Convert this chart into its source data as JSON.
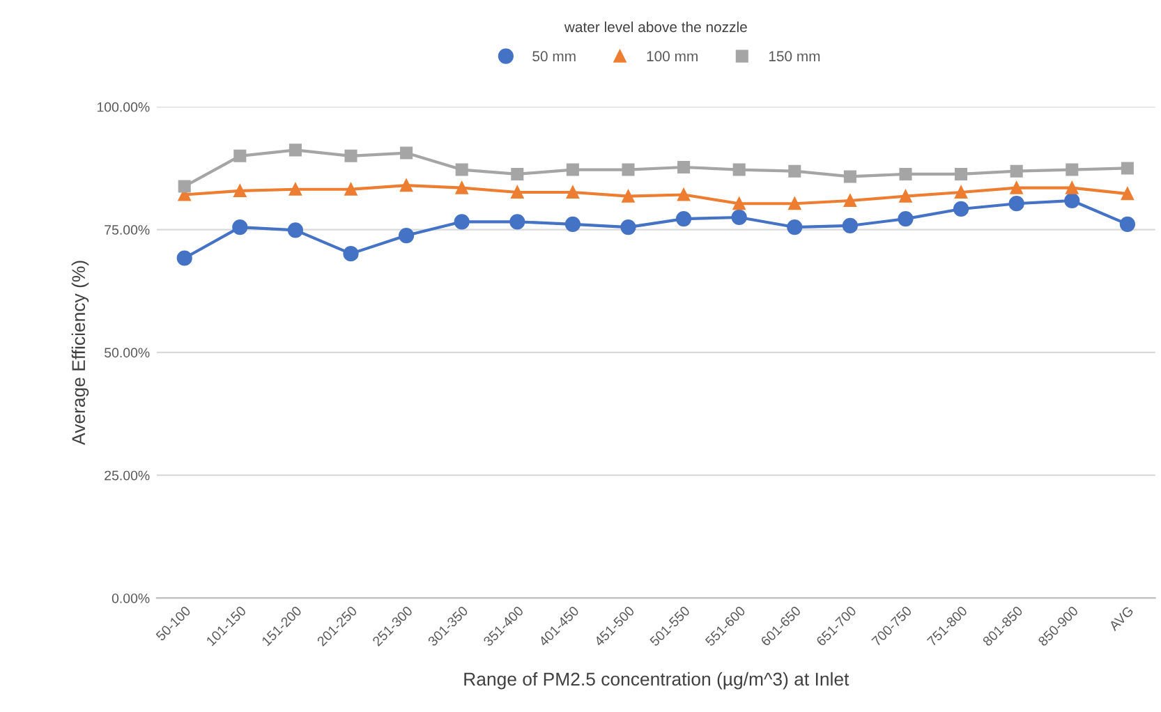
{
  "chart_data": {
    "type": "line",
    "title": "water level above the nozzle",
    "xlabel": "Range of PM2.5 concentration (µg/m^3) at Inlet",
    "ylabel": "Average Efficiency (%)",
    "categories": [
      "50-100",
      "101-150",
      "151-200",
      "201-250",
      "251-300",
      "301-350",
      "351-400",
      "401-450",
      "451-500",
      "501-550",
      "551-600",
      "601-650",
      "651-700",
      "700-750",
      "751-800",
      "801-850",
      "850-900",
      "AVG"
    ],
    "series": [
      {
        "name": "50 mm",
        "color": "#4472c4",
        "marker": "circle",
        "values": [
          69.2,
          75.5,
          74.9,
          70.1,
          73.8,
          76.6,
          76.6,
          76.1,
          75.5,
          77.2,
          77.5,
          75.5,
          75.8,
          77.2,
          79.2,
          80.3,
          80.9,
          76.1
        ]
      },
      {
        "name": "100 mm",
        "color": "#ed7d31",
        "marker": "triangle",
        "values": [
          82.1,
          82.9,
          83.2,
          83.2,
          84.0,
          83.5,
          82.6,
          82.6,
          81.8,
          82.1,
          80.3,
          80.3,
          80.9,
          81.8,
          82.6,
          83.5,
          83.5,
          82.3
        ]
      },
      {
        "name": "150 mm",
        "color": "#a5a5a5",
        "marker": "square",
        "values": [
          83.8,
          90.0,
          91.2,
          90.0,
          90.6,
          87.2,
          86.3,
          87.2,
          87.2,
          87.7,
          87.2,
          86.9,
          85.8,
          86.3,
          86.3,
          86.9,
          87.2,
          87.5
        ]
      }
    ],
    "ylim": [
      0,
      100
    ],
    "yticks": [
      {
        "value": 0,
        "label": "0.00%"
      },
      {
        "value": 25,
        "label": "25.00%"
      },
      {
        "value": 50,
        "label": "50.00%"
      },
      {
        "value": 75,
        "label": "75.00%"
      },
      {
        "value": 100,
        "label": "100.00%"
      }
    ],
    "grid": "y",
    "legend": "top"
  }
}
